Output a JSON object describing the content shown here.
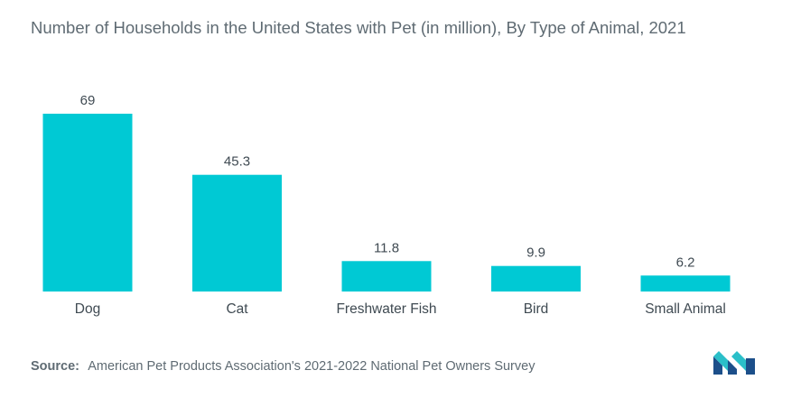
{
  "chart_data": {
    "type": "bar",
    "title": "Number of Households in the United States with Pet (in million), By Type of Animal, 2021",
    "categories": [
      "Dog",
      "Cat",
      "Freshwater Fish",
      "Bird",
      "Small Animal"
    ],
    "values": [
      69,
      45.3,
      11.8,
      9.9,
      6.2
    ],
    "value_labels": [
      "69",
      "45.3",
      "11.8",
      "9.9",
      "6.2"
    ],
    "xlabel": "",
    "ylabel": "",
    "ylim": [
      0,
      69
    ],
    "grid": false,
    "legend": "none",
    "bar_color": "#00c9d4"
  },
  "source": {
    "label": "Source:",
    "text": "American Pet Products Association's 2021-2022 National Pet Owners Survey"
  },
  "logo": {
    "icon": "mordor-intelligence-logo-icon",
    "colors": [
      "#1c4f8a",
      "#2bbfc9"
    ]
  }
}
